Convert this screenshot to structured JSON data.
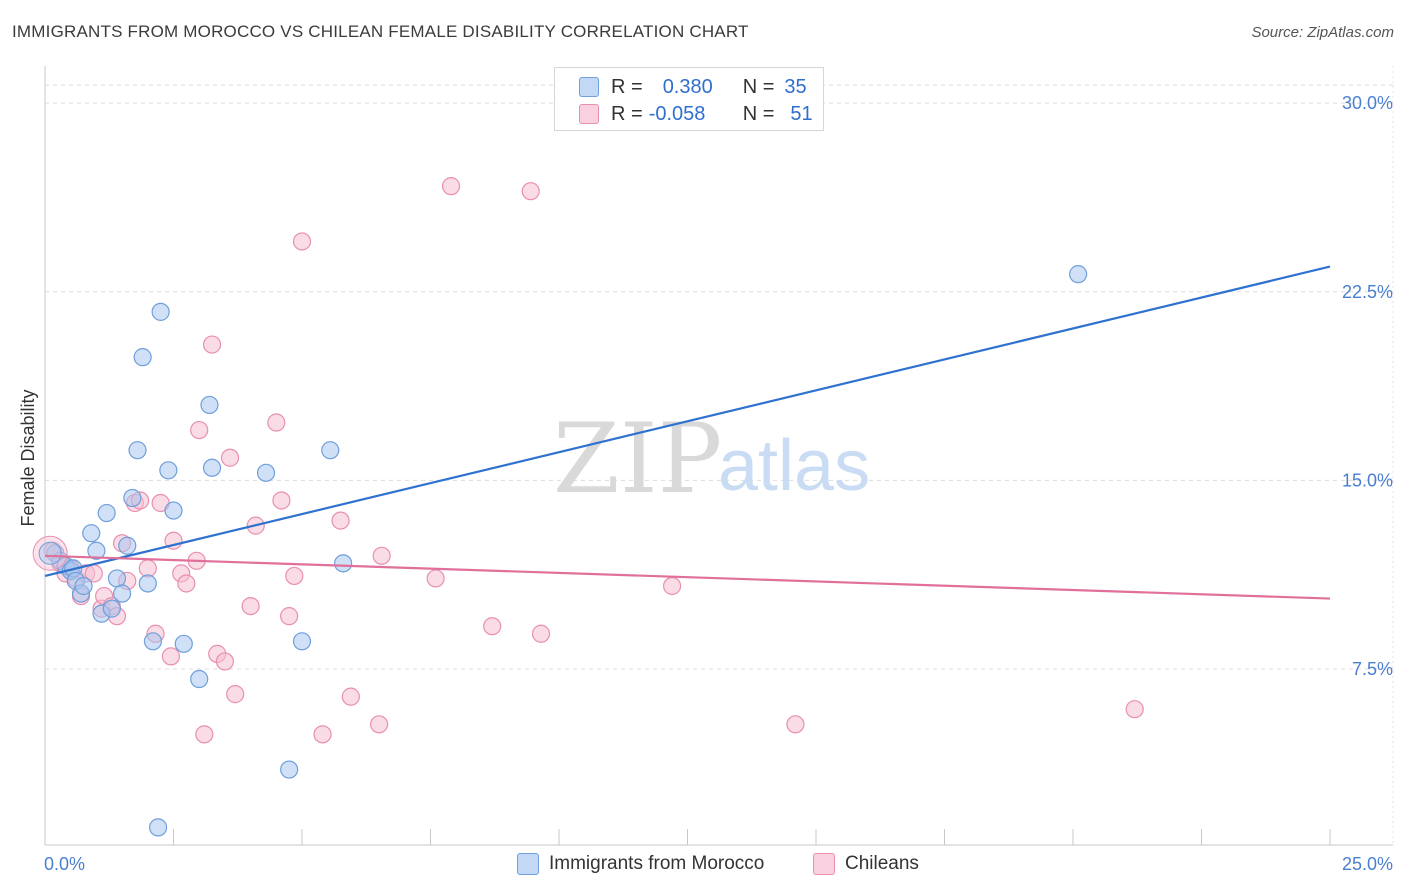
{
  "title": "IMMIGRANTS FROM MOROCCO VS CHILEAN FEMALE DISABILITY CORRELATION CHART",
  "source": "Source: ZipAtlas.com",
  "watermark": {
    "zip": "ZIP",
    "atlas": "atlas"
  },
  "legend": {
    "rows": [
      {
        "r_label": "R =",
        "r_value": "0.380",
        "n_label": "N =",
        "n_value": "35"
      },
      {
        "r_label": "R =",
        "r_value": "-0.058",
        "n_label": "N =",
        "n_value": "51"
      }
    ]
  },
  "bottom_legend": {
    "series1": "Immigrants from Morocco",
    "series2": "Chileans"
  },
  "colors": {
    "blue_fill": "#a9c7ee",
    "blue_stroke": "#6f9fdc",
    "blue_line": "#2f72d0",
    "pink_fill": "#f6bfd2",
    "pink_stroke": "#e98fb0",
    "pink_line": "#e06f9a"
  },
  "chart_data": {
    "type": "scatter",
    "title": "IMMIGRANTS FROM MOROCCO VS CHILEAN FEMALE DISABILITY CORRELATION CHART",
    "ylabel": "Female Disability",
    "xlabel": "",
    "xlim": [
      0,
      25
    ],
    "ylim": [
      0.5,
      31
    ],
    "x_tick_labels": [
      {
        "value": 0,
        "label": "0.0%"
      },
      {
        "value": 25,
        "label": "25.0%"
      }
    ],
    "y_tick_labels": [
      {
        "value": 7.5,
        "label": "7.5%"
      },
      {
        "value": 15,
        "label": "15.0%"
      },
      {
        "value": 22.5,
        "label": "22.5%"
      },
      {
        "value": 30,
        "label": "30.0%"
      }
    ],
    "x_minor_ticks": [
      0,
      2.5,
      5,
      7.5,
      10,
      12.5,
      15,
      17.5,
      20,
      22.5,
      25
    ],
    "series": [
      {
        "name": "Immigrants from Morocco",
        "trend": {
          "x": [
            0,
            25
          ],
          "y": [
            11.2,
            23.5
          ]
        },
        "points": [
          [
            0.2,
            12.1
          ],
          [
            0.3,
            11.8
          ],
          [
            0.4,
            11.6
          ],
          [
            0.5,
            11.4
          ],
          [
            0.55,
            11.5
          ],
          [
            0.6,
            11.0
          ],
          [
            0.7,
            10.5
          ],
          [
            0.75,
            10.8
          ],
          [
            0.9,
            12.9
          ],
          [
            1.0,
            12.2
          ],
          [
            1.1,
            9.7
          ],
          [
            1.2,
            13.7
          ],
          [
            1.3,
            9.9
          ],
          [
            1.4,
            11.1
          ],
          [
            1.5,
            10.5
          ],
          [
            1.6,
            12.4
          ],
          [
            1.7,
            14.3
          ],
          [
            1.8,
            16.2
          ],
          [
            1.9,
            19.9
          ],
          [
            2.0,
            10.9
          ],
          [
            2.1,
            8.6
          ],
          [
            2.2,
            1.2
          ],
          [
            2.25,
            21.7
          ],
          [
            2.4,
            15.4
          ],
          [
            2.5,
            13.8
          ],
          [
            2.7,
            8.5
          ],
          [
            3.0,
            7.1
          ],
          [
            3.2,
            18.0
          ],
          [
            3.25,
            15.5
          ],
          [
            4.3,
            15.3
          ],
          [
            4.75,
            3.5
          ],
          [
            5.0,
            8.6
          ],
          [
            5.55,
            16.2
          ],
          [
            5.8,
            11.7
          ],
          [
            20.1,
            23.2
          ]
        ]
      },
      {
        "name": "Chileans",
        "trend": {
          "x": [
            0,
            25
          ],
          "y": [
            12.0,
            10.3
          ]
        },
        "points": [
          [
            0.15,
            12.2
          ],
          [
            0.3,
            11.7
          ],
          [
            0.4,
            11.3
          ],
          [
            0.6,
            11.1
          ],
          [
            0.7,
            10.4
          ],
          [
            0.8,
            11.3
          ],
          [
            0.95,
            11.3
          ],
          [
            1.1,
            9.9
          ],
          [
            1.15,
            10.4
          ],
          [
            1.3,
            10.0
          ],
          [
            1.4,
            9.6
          ],
          [
            1.5,
            12.5
          ],
          [
            1.6,
            11.0
          ],
          [
            1.75,
            14.1
          ],
          [
            1.85,
            14.2
          ],
          [
            2.0,
            11.5
          ],
          [
            2.15,
            8.9
          ],
          [
            2.25,
            14.1
          ],
          [
            2.45,
            8.0
          ],
          [
            2.5,
            12.6
          ],
          [
            2.65,
            11.3
          ],
          [
            2.75,
            10.9
          ],
          [
            2.95,
            11.8
          ],
          [
            3.0,
            17.0
          ],
          [
            3.1,
            4.9
          ],
          [
            3.25,
            20.4
          ],
          [
            3.35,
            8.1
          ],
          [
            3.5,
            7.8
          ],
          [
            3.6,
            15.9
          ],
          [
            3.7,
            6.5
          ],
          [
            4.0,
            10.0
          ],
          [
            4.1,
            13.2
          ],
          [
            4.5,
            17.3
          ],
          [
            4.6,
            14.2
          ],
          [
            4.75,
            9.6
          ],
          [
            4.85,
            11.2
          ],
          [
            5.0,
            24.5
          ],
          [
            5.4,
            4.9
          ],
          [
            5.75,
            13.4
          ],
          [
            5.95,
            6.4
          ],
          [
            6.5,
            5.3
          ],
          [
            6.55,
            12.0
          ],
          [
            7.6,
            11.1
          ],
          [
            7.9,
            26.7
          ],
          [
            8.7,
            9.2
          ],
          [
            9.45,
            26.5
          ],
          [
            9.65,
            8.9
          ],
          [
            12.2,
            10.8
          ],
          [
            14.6,
            5.3
          ],
          [
            21.2,
            5.9
          ],
          [
            0.5,
            11.5
          ]
        ]
      }
    ]
  }
}
